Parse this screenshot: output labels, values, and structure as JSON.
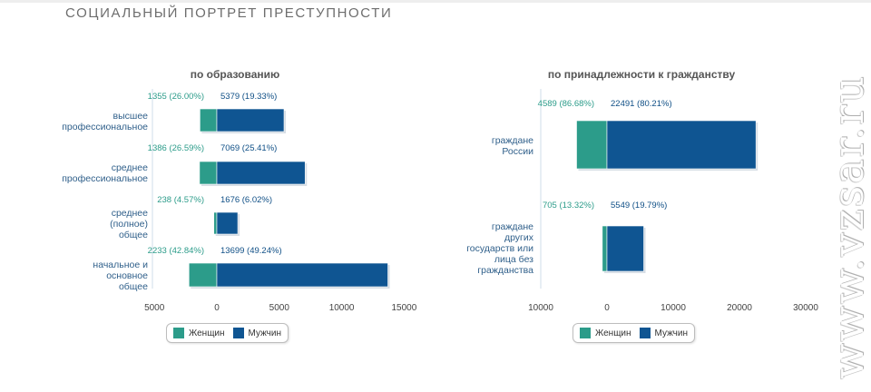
{
  "page": {
    "title": "СОЦИАЛЬНЫЙ ПОРТРЕТ ПРЕСТУПНОСТИ",
    "watermark": "www.vzsar.ru"
  },
  "colors": {
    "women": "#2c9c8a",
    "men": "#0f5592"
  },
  "legend": {
    "women": "Женщин",
    "men": "Мужчин"
  },
  "chart_data": [
    {
      "type": "bar",
      "orientation": "horizontal",
      "stacked_diverging": true,
      "title": "по образованию",
      "categories": [
        [
          "высшее",
          "профессиональное"
        ],
        [
          "среднее",
          "профессиональное"
        ],
        [
          "среднее",
          "(полное)",
          "общее"
        ],
        [
          "начальное и",
          "основное",
          "общее"
        ]
      ],
      "series": [
        {
          "name": "Женщин",
          "values": [
            1355,
            1386,
            238,
            2233
          ],
          "labels": [
            "1355 (26.00%)",
            "1386 (26.59%)",
            "238 (4.57%)",
            "2233 (42.84%)"
          ]
        },
        {
          "name": "Мужчин",
          "values": [
            5379,
            7069,
            1676,
            13699
          ],
          "labels": [
            "5379 (19.33%)",
            "7069 (25.41%)",
            "1676 (6.02%)",
            "13699 (49.24%)"
          ]
        }
      ],
      "xlim": [
        -5000,
        15000
      ],
      "ticks": [
        -5000,
        0,
        5000,
        10000,
        15000
      ],
      "tick_labels": [
        "5000",
        "0",
        "5000",
        "10000",
        "15000"
      ]
    },
    {
      "type": "bar",
      "orientation": "horizontal",
      "stacked_diverging": true,
      "title": "по принадлежности к гражданству",
      "categories": [
        [
          "граждане",
          "России"
        ],
        [
          "граждане",
          "других",
          "государств или",
          "лица без",
          "гражданства"
        ]
      ],
      "series": [
        {
          "name": "Женщин",
          "values": [
            4589,
            705
          ],
          "labels": [
            "4589 (86.68%)",
            "705 (13.32%)"
          ]
        },
        {
          "name": "Мужчин",
          "values": [
            22491,
            5549
          ],
          "labels": [
            "22491 (80.21%)",
            "5549 (19.79%)"
          ]
        }
      ],
      "xlim": [
        -10000,
        30000
      ],
      "ticks": [
        -10000,
        0,
        10000,
        20000,
        30000
      ],
      "tick_labels": [
        "10000",
        "0",
        "10000",
        "20000",
        "30000"
      ]
    }
  ]
}
